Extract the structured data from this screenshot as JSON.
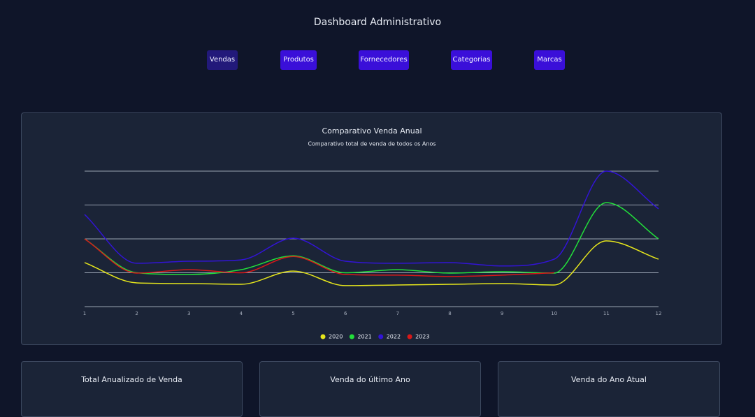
{
  "header": {
    "title": "Dashboard Administrativo"
  },
  "nav": [
    "Vendas",
    "Produtos",
    "Fornecedores",
    "Categorias",
    "Marcas"
  ],
  "cards": [
    {
      "title": "Total Anualizado de Venda"
    },
    {
      "title": "Venda do último Ano"
    },
    {
      "title": "Venda do Ano Atual"
    }
  ],
  "chart_data": {
    "type": "line",
    "title": "Comparativo Venda Anual",
    "subtitle": "Comparativo total de venda de todos os Anos",
    "x": [
      1,
      2,
      3,
      4,
      5,
      6,
      7,
      8,
      9,
      10,
      11,
      12
    ],
    "xlim": [
      1,
      12
    ],
    "xticks": [
      1,
      2,
      3,
      4,
      5,
      6,
      7,
      8,
      9,
      10,
      11,
      12
    ],
    "ylim": [
      0,
      4
    ],
    "yticks": [
      0,
      1,
      2,
      3,
      4
    ],
    "grid": true,
    "series": [
      {
        "name": "2020",
        "color": "#e6e61c",
        "values": [
          1.3,
          0.7,
          0.68,
          0.66,
          1.05,
          0.62,
          0.64,
          0.66,
          0.68,
          0.64,
          1.94,
          1.4
        ]
      },
      {
        "name": "2021",
        "color": "#22e03a",
        "values": [
          2.0,
          1.0,
          0.95,
          1.09,
          1.5,
          1.0,
          1.09,
          0.99,
          1.03,
          0.99,
          3.07,
          2.0
        ]
      },
      {
        "name": "2022",
        "color": "#3214d6",
        "values": [
          2.72,
          1.28,
          1.34,
          1.38,
          2.02,
          1.34,
          1.28,
          1.3,
          1.2,
          1.4,
          4.0,
          2.89
        ]
      },
      {
        "name": "2023",
        "color": "#d81818",
        "values": [
          2.0,
          0.99,
          1.09,
          1.0,
          1.48,
          0.95,
          0.93,
          0.89,
          0.93,
          1.0,
          null,
          null
        ]
      }
    ]
  }
}
